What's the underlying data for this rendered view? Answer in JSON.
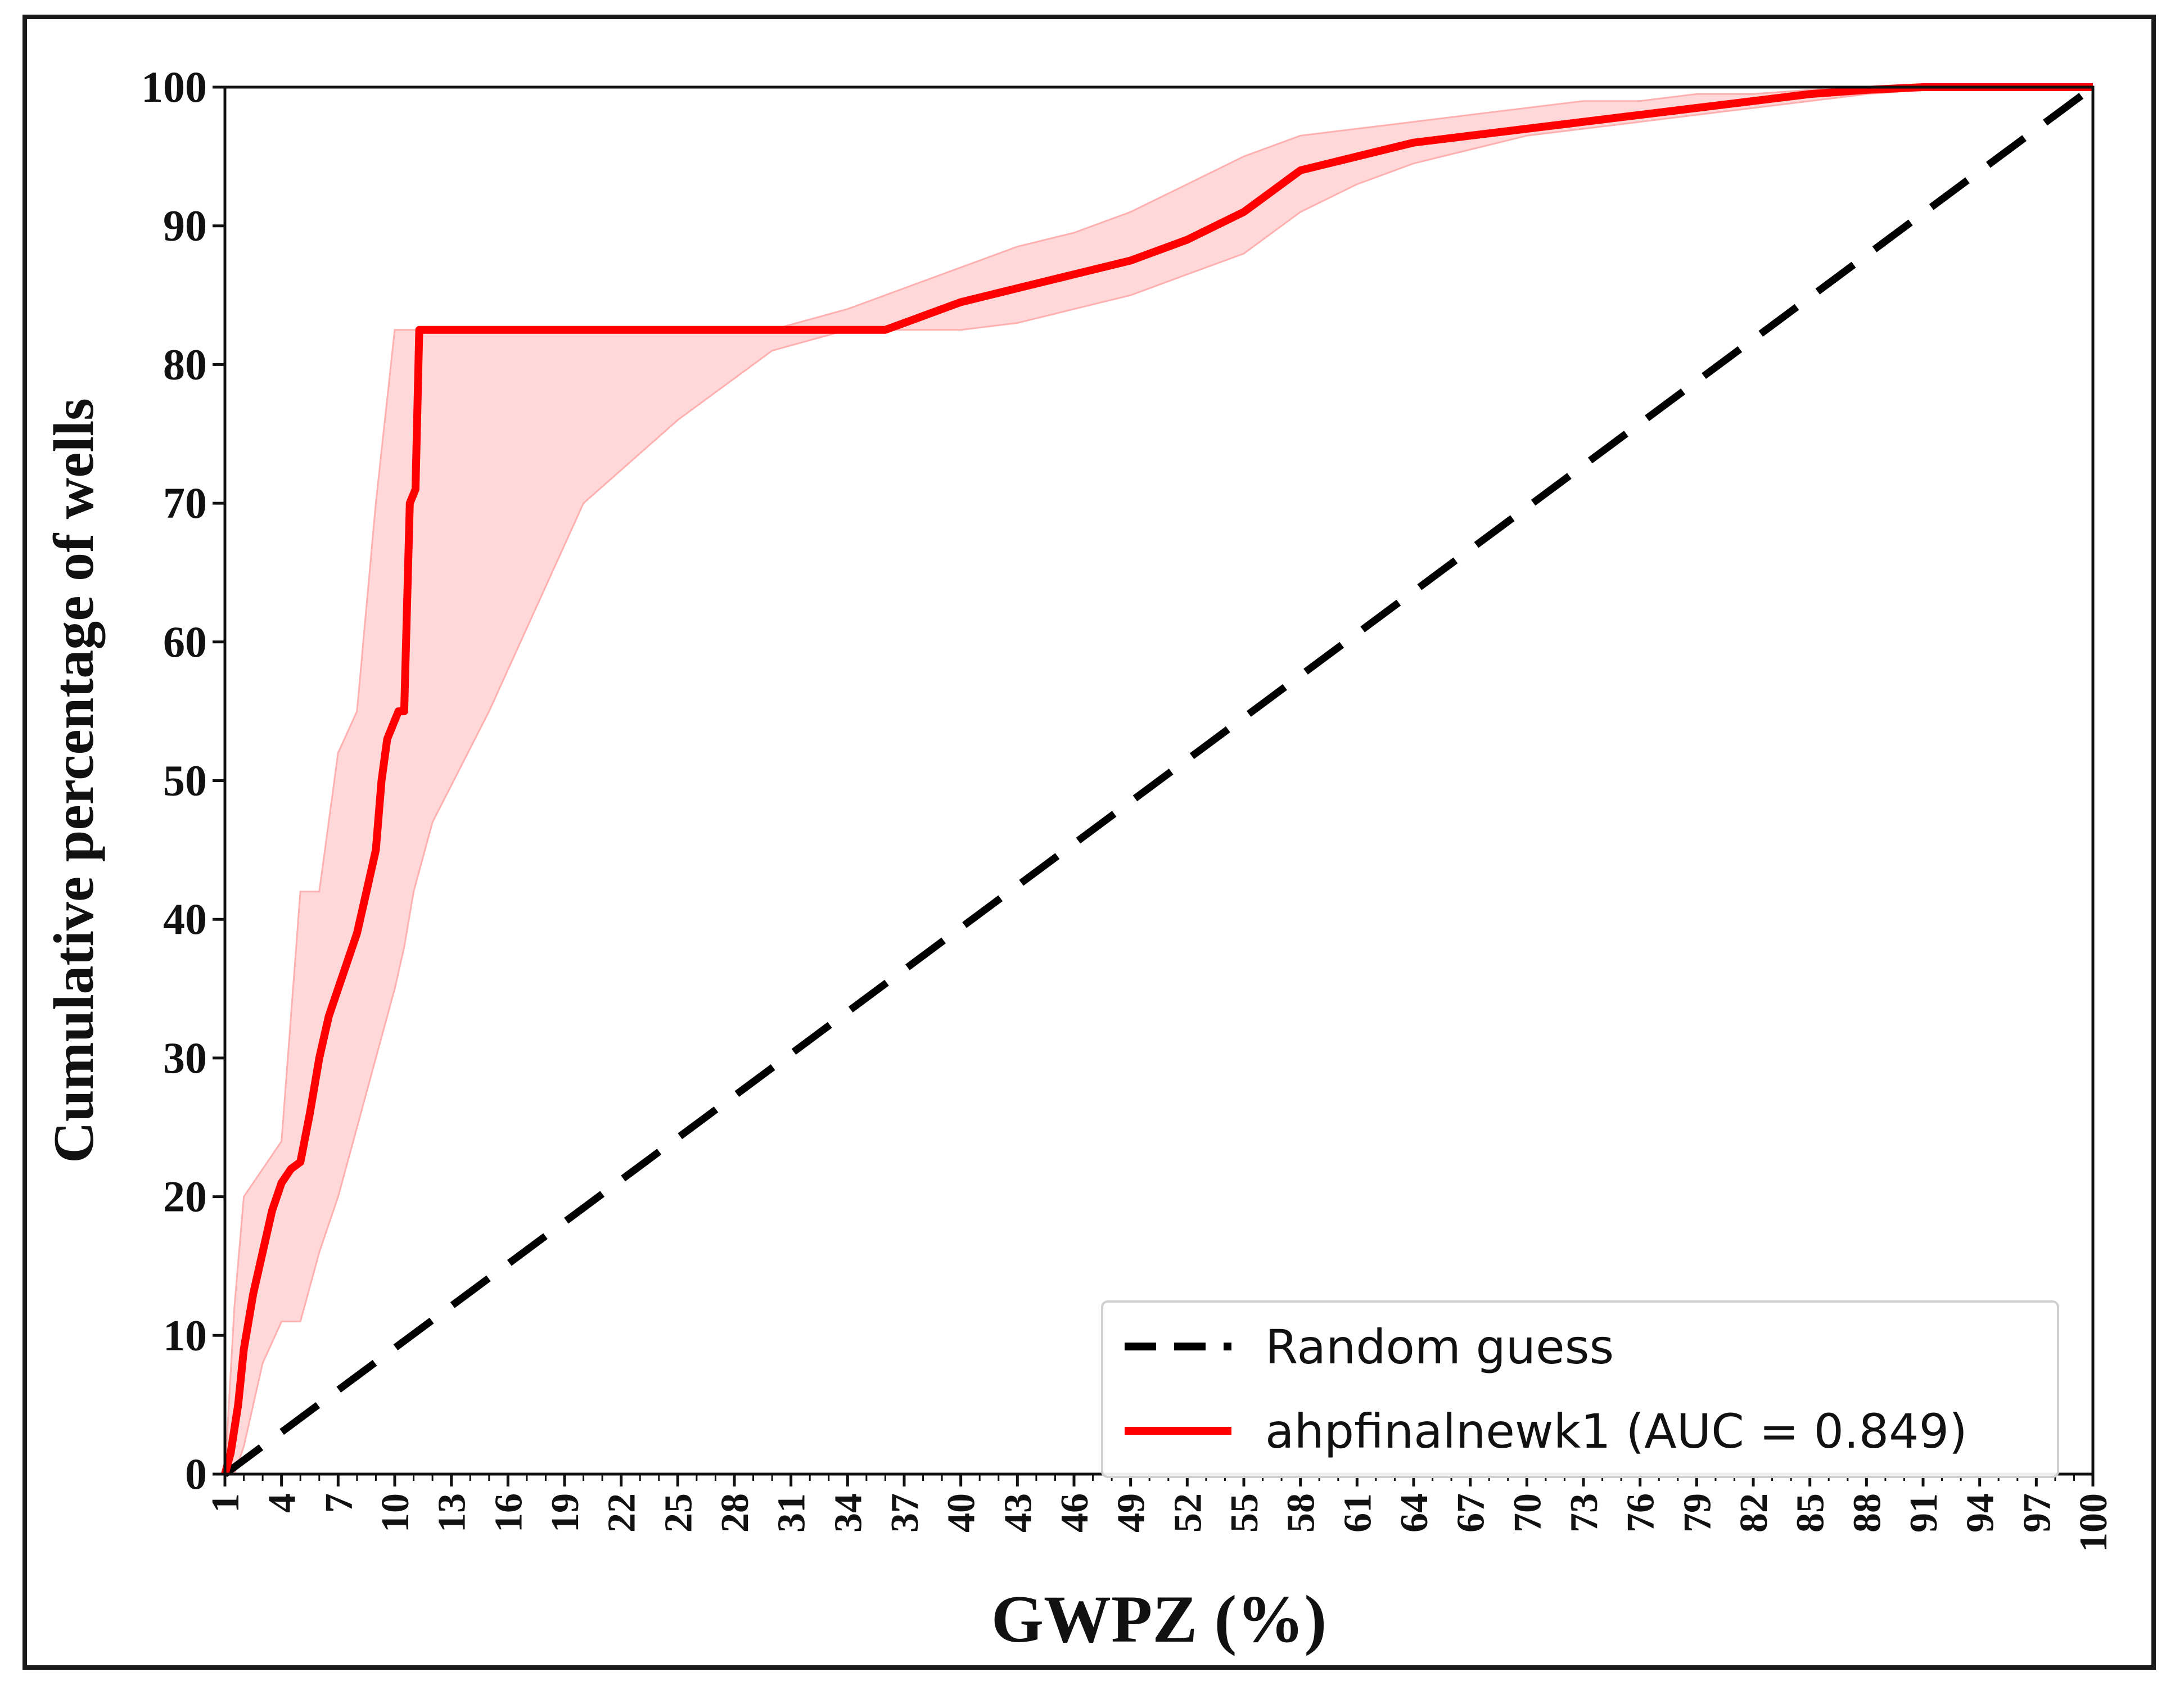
{
  "chart_data": {
    "type": "line",
    "xlabel": "GWPZ (%)",
    "ylabel": "Cumulative percentage of wells",
    "xlim": [
      1,
      100
    ],
    "ylim": [
      0,
      100
    ],
    "x_ticks": [
      "1",
      "4",
      "7",
      "10",
      "13",
      "16",
      "19",
      "22",
      "25",
      "28",
      "31",
      "34",
      "37",
      "40",
      "43",
      "46",
      "49",
      "52",
      "55",
      "58",
      "61",
      "64",
      "67",
      "70",
      "73",
      "76",
      "79",
      "82",
      "85",
      "88",
      "91",
      "94",
      "97",
      "100"
    ],
    "y_ticks": [
      "0",
      "10",
      "20",
      "30",
      "40",
      "50",
      "60",
      "70",
      "80",
      "90",
      "100"
    ],
    "legend_position": "lower-right",
    "series": [
      {
        "name": "Random guess",
        "style": "dashed",
        "color": "#000000",
        "x": [
          1,
          100
        ],
        "y": [
          0,
          100
        ]
      },
      {
        "name": "ahpfinalnewk1 (AUC = 0.849)",
        "style": "solid",
        "color": "#ff0000",
        "x": [
          1,
          1.3,
          1.7,
          2,
          2.5,
          3,
          3.5,
          4,
          4.5,
          5,
          5.5,
          6,
          6.5,
          7,
          7.5,
          8,
          8.5,
          9,
          9.3,
          9.6,
          9.9,
          10.2,
          10.5,
          10.8,
          11.1,
          11.3,
          11.6,
          11.8,
          12,
          15,
          20,
          25,
          30,
          34,
          36,
          37,
          40,
          43,
          46,
          49,
          52,
          55,
          58,
          61,
          64,
          67,
          70,
          73,
          76,
          79,
          82,
          85,
          88,
          91,
          94,
          97,
          100
        ],
        "y": [
          0,
          1.5,
          5,
          9,
          13,
          16,
          19,
          21,
          22,
          22.5,
          26,
          30,
          33,
          35,
          37,
          39,
          42,
          45,
          50,
          53,
          54,
          55,
          55,
          70,
          71,
          82.5,
          82.5,
          82.5,
          82.5,
          82.5,
          82.5,
          82.5,
          82.5,
          82.5,
          82.5,
          83,
          84.5,
          85.5,
          86.5,
          87.5,
          89,
          91,
          94,
          95,
          96,
          96.5,
          97,
          97.5,
          98,
          98.5,
          99,
          99.5,
          99.8,
          100,
          100,
          100,
          100
        ]
      }
    ],
    "confidence_band": {
      "color": "#ffcccc",
      "x": [
        1,
        1.5,
        2,
        3,
        4,
        5,
        6,
        7,
        8,
        9,
        10,
        10.5,
        11,
        12,
        15,
        20,
        25,
        30,
        34,
        37,
        40,
        43,
        46,
        49,
        52,
        55,
        58,
        61,
        64,
        67,
        70,
        73,
        76,
        79,
        82,
        85,
        88,
        91,
        94,
        97,
        100
      ],
      "upper": [
        0,
        12,
        20,
        22,
        24,
        42,
        42,
        52,
        55,
        70,
        82.5,
        82.5,
        82.5,
        82.5,
        82.5,
        82.5,
        82.5,
        82.5,
        84,
        85.5,
        87,
        88.5,
        89.5,
        91,
        93,
        95,
        96.5,
        97,
        97.5,
        98,
        98.5,
        99,
        99,
        99.5,
        99.5,
        99.8,
        100,
        100,
        100,
        100,
        100
      ],
      "lower": [
        0,
        0,
        2,
        8,
        11,
        11,
        16,
        20,
        25,
        30,
        35,
        38,
        42,
        47,
        55,
        70,
        76,
        81,
        82.5,
        82.5,
        82.5,
        83,
        84,
        85,
        86.5,
        88,
        91,
        93,
        94.5,
        95.5,
        96.5,
        97,
        97.5,
        98,
        98.5,
        99,
        99.5,
        99.8,
        100,
        100,
        100
      ]
    }
  }
}
